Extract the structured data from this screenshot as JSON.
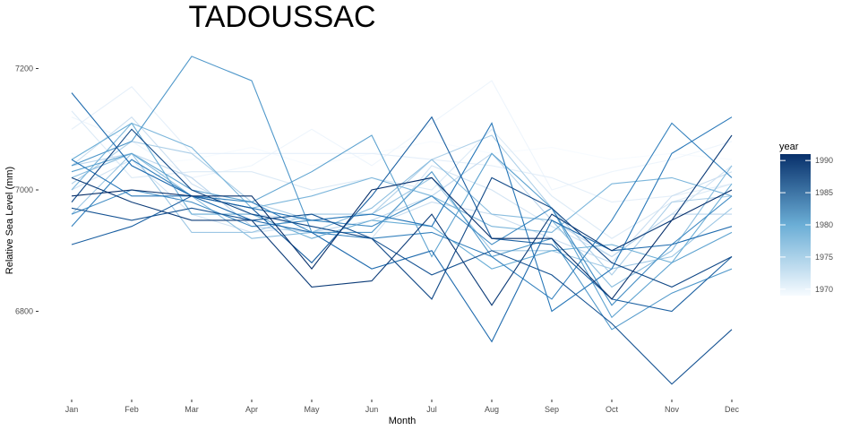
{
  "chart_data": {
    "type": "line",
    "title": "TADOUSSAC",
    "xlabel": "Month",
    "ylabel": "Relative Sea Level (mm)",
    "categories": [
      "Jan",
      "Feb",
      "Mar",
      "Apr",
      "May",
      "Jun",
      "Jul",
      "Aug",
      "Sep",
      "Oct",
      "Nov",
      "Dec"
    ],
    "y_ticks": [
      6800,
      7000,
      7200
    ],
    "ylim": [
      6680,
      7240
    ],
    "grid": false,
    "legend": {
      "title": "year",
      "type": "continuous colorbar",
      "placement": "right",
      "range": [
        1969,
        1991
      ],
      "ticks": [
        1970,
        1975,
        1980,
        1985,
        1990
      ],
      "color_low": "#f7fbff",
      "color_high": "#08306b"
    },
    "series": [
      {
        "year": 1969,
        "values": [
          7060,
          7040,
          7050,
          7070,
          7040,
          7060,
          7080,
          7060,
          7070,
          7050,
          7060,
          7050
        ]
      },
      {
        "year": 1970,
        "values": [
          7120,
          7080,
          7020,
          7040,
          7100,
          7040,
          7110,
          7180,
          7000,
          7030,
          7050,
          7080
        ]
      },
      {
        "year": 1971,
        "values": [
          7100,
          7170,
          7060,
          7060,
          7060,
          7060,
          7050,
          7040,
          7020,
          6980,
          6990,
          7010
        ]
      },
      {
        "year": 1972,
        "values": [
          7130,
          7020,
          7030,
          7030,
          7000,
          7020,
          7000,
          7100,
          6990,
          6920,
          6980,
          7010
        ]
      },
      {
        "year": 1973,
        "values": [
          7000,
          7050,
          6960,
          6930,
          6940,
          6920,
          7040,
          7000,
          6940,
          6890,
          6960,
          7040
        ]
      },
      {
        "year": 1974,
        "values": [
          7040,
          7120,
          7010,
          6960,
          6950,
          6940,
          6980,
          6960,
          6920,
          6880,
          6990,
          7030
        ]
      },
      {
        "year": 1975,
        "values": [
          7040,
          7060,
          7020,
          6940,
          6930,
          6950,
          6990,
          7060,
          6950,
          6890,
          6960,
          6960
        ]
      },
      {
        "year": 1976,
        "values": [
          7010,
          7080,
          7060,
          6980,
          6950,
          6960,
          7050,
          7090,
          6970,
          6860,
          6980,
          6990
        ]
      },
      {
        "year": 1977,
        "values": [
          6960,
          7060,
          6930,
          6930,
          6960,
          6960,
          7020,
          6900,
          6900,
          6870,
          6890,
          6970
        ]
      },
      {
        "year": 1978,
        "values": [
          7020,
          7060,
          6990,
          6920,
          6930,
          6970,
          7050,
          6960,
          6950,
          6840,
          6900,
          7040
        ]
      },
      {
        "year": 1979,
        "values": [
          7000,
          7110,
          7070,
          6970,
          6990,
          7020,
          6990,
          6940,
          6930,
          7010,
          7020,
          6990
        ]
      },
      {
        "year": 1980,
        "values": [
          7050,
          7110,
          6960,
          6960,
          6920,
          6950,
          6940,
          6870,
          6900,
          6910,
          6880,
          7010
        ]
      },
      {
        "year": 1981,
        "values": [
          7030,
          7060,
          7000,
          6980,
          7030,
          7090,
          6890,
          7060,
          6970,
          6790,
          6880,
          6930
        ]
      },
      {
        "year": 1982,
        "values": [
          7040,
          7080,
          7220,
          7180,
          6930,
          6930,
          7030,
          6890,
          6920,
          6770,
          6830,
          6870
        ]
      },
      {
        "year": 1983,
        "values": [
          6960,
          7000,
          6980,
          6940,
          6950,
          6940,
          6990,
          6910,
          6970,
          6810,
          6910,
          6990
        ]
      },
      {
        "year": 1984,
        "values": [
          6940,
          7050,
          6990,
          6980,
          6930,
          6920,
          6930,
          6890,
          6820,
          6950,
          7110,
          7020
        ]
      },
      {
        "year": 1985,
        "values": [
          7050,
          6990,
          6990,
          6970,
          6950,
          6960,
          6940,
          7110,
          6800,
          6870,
          7060,
          7120
        ]
      },
      {
        "year": 1986,
        "values": [
          7160,
          7040,
          6990,
          6950,
          6930,
          6870,
          6900,
          6750,
          6950,
          6900,
          6910,
          6940
        ]
      },
      {
        "year": 1987,
        "values": [
          6910,
          6940,
          6990,
          6970,
          6880,
          6990,
          7120,
          6920,
          6910,
          6820,
          6800,
          6890
        ]
      },
      {
        "year": 1988,
        "values": [
          6970,
          6950,
          6970,
          6950,
          6960,
          6920,
          6860,
          6900,
          6860,
          6780,
          6680,
          6770
        ]
      },
      {
        "year": 1989,
        "values": [
          6980,
          7100,
          7000,
          6960,
          6940,
          6920,
          6820,
          7020,
          6970,
          6880,
          6840,
          6890
        ]
      },
      {
        "year": 1990,
        "values": [
          7020,
          6980,
          6950,
          6950,
          6840,
          6850,
          6960,
          6810,
          6960,
          6900,
          6950,
          7090
        ]
      },
      {
        "year": 1991,
        "values": [
          6990,
          7000,
          6990,
          6990,
          6870,
          7000,
          7020,
          6920,
          6920,
          6820,
          6950,
          7000
        ]
      }
    ]
  }
}
